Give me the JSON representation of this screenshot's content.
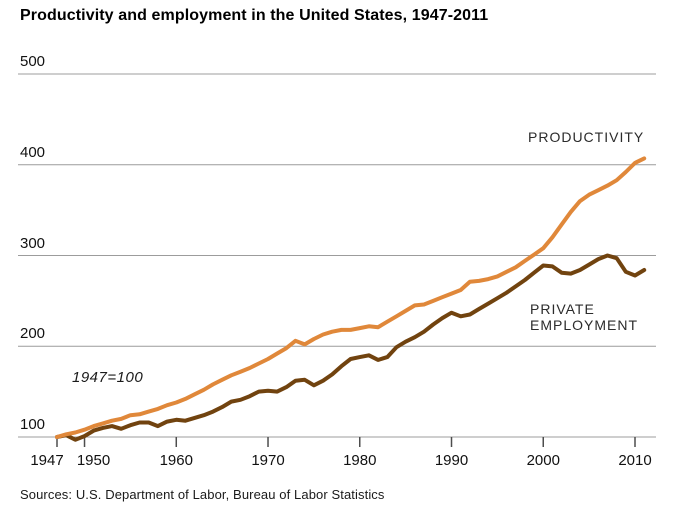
{
  "title": "Productivity and employment in the United States, 1947-2011",
  "annotation": "1947=100",
  "source_note": "Sources: U.S. Department of Labor, Bureau of Labor Statistics",
  "series_labels": {
    "productivity": "PRODUCTIVITY",
    "employment": "PRIVATE\nEMPLOYMENT"
  },
  "colors": {
    "productivity": "#e0883a",
    "employment": "#71430f",
    "grid": "#9c9c9c",
    "tick": "#4d4d4d",
    "text": "#111111"
  },
  "chart_data": {
    "type": "line",
    "title": "Productivity and employment in the United States, 1947-2011",
    "xlabel": "",
    "ylabel": "",
    "index_note": "1947=100",
    "grid": "horizontal",
    "legend_position": "inline-labels",
    "xlim": [
      1947,
      2011
    ],
    "ylim": [
      100,
      500
    ],
    "xticks": [
      1947,
      1950,
      1960,
      1970,
      1980,
      1990,
      2000,
      2010
    ],
    "yticks": [
      500,
      400,
      300,
      200,
      100
    ],
    "x": [
      1947,
      1948,
      1949,
      1950,
      1951,
      1952,
      1953,
      1954,
      1955,
      1956,
      1957,
      1958,
      1959,
      1960,
      1961,
      1962,
      1963,
      1964,
      1965,
      1966,
      1967,
      1968,
      1969,
      1970,
      1971,
      1972,
      1973,
      1974,
      1975,
      1976,
      1977,
      1978,
      1979,
      1980,
      1981,
      1982,
      1983,
      1984,
      1985,
      1986,
      1987,
      1988,
      1989,
      1990,
      1991,
      1992,
      1993,
      1994,
      1995,
      1996,
      1997,
      1998,
      1999,
      2000,
      2001,
      2002,
      2003,
      2004,
      2005,
      2006,
      2007,
      2008,
      2009,
      2010,
      2011
    ],
    "series": [
      {
        "name": "PRODUCTIVITY",
        "color_key": "productivity",
        "values": [
          100,
          103,
          105,
          108,
          112,
          115,
          118,
          120,
          124,
          125,
          128,
          131,
          135,
          138,
          142,
          147,
          152,
          158,
          163,
          168,
          172,
          176,
          181,
          186,
          192,
          198,
          206,
          202,
          208,
          213,
          216,
          218,
          218,
          220,
          222,
          221,
          227,
          233,
          239,
          245,
          246,
          250,
          254,
          258,
          262,
          271,
          272,
          274,
          277,
          282,
          287,
          294,
          301,
          308,
          320,
          334,
          348,
          360,
          367,
          372,
          377,
          383,
          392,
          402,
          407
        ]
      },
      {
        "name": "PRIVATE EMPLOYMENT",
        "color_key": "employment",
        "values": [
          100,
          102,
          97,
          101,
          107,
          110,
          112,
          109,
          113,
          116,
          116,
          112,
          117,
          119,
          118,
          121,
          124,
          128,
          133,
          139,
          141,
          145,
          150,
          151,
          150,
          155,
          162,
          163,
          157,
          162,
          169,
          178,
          186,
          188,
          190,
          185,
          188,
          199,
          205,
          210,
          216,
          224,
          231,
          237,
          233,
          235,
          241,
          247,
          253,
          259,
          266,
          273,
          281,
          289,
          288,
          281,
          280,
          284,
          290,
          296,
          300,
          297,
          282,
          278,
          284
        ]
      }
    ]
  }
}
